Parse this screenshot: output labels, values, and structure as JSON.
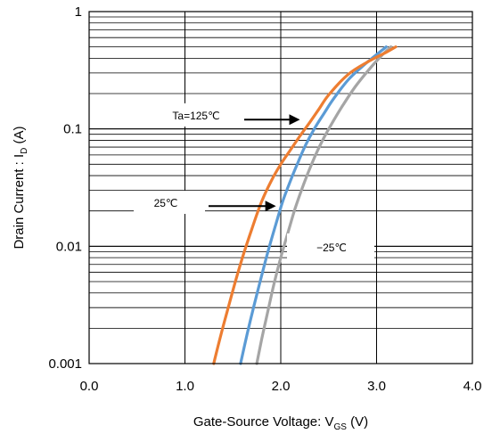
{
  "chart_data": {
    "type": "line",
    "title": "",
    "xlabel": {
      "main": "Gate-Source Voltage: V",
      "sub": "GS",
      "unit": " (V)"
    },
    "ylabel": {
      "main": "Drain Current : I",
      "sub": "D",
      "unit": " (A)"
    },
    "xlim": [
      0,
      4
    ],
    "ylim": [
      0.001,
      1
    ],
    "yscale": "log",
    "grid": true,
    "x_ticks": [
      0,
      1,
      2,
      3,
      4
    ],
    "x_tick_labels": [
      "0.0",
      "1.0",
      "2.0",
      "3.0",
      "4.0"
    ],
    "y_ticks": [
      0.001,
      0.01,
      0.1,
      1
    ],
    "y_tick_labels": [
      "0.001",
      "0.01",
      "0.1",
      "1"
    ],
    "series": [
      {
        "name": "Ta=125℃",
        "color": "#ED7D31",
        "x": [
          1.3,
          1.4,
          1.5,
          1.6,
          1.7,
          1.8,
          1.9,
          2.0,
          2.1,
          2.2,
          2.3,
          2.4,
          2.5,
          2.7,
          2.9,
          3.1,
          3.2
        ],
        "y": [
          0.001,
          0.0021,
          0.0042,
          0.008,
          0.0142,
          0.024,
          0.036,
          0.05,
          0.066,
          0.087,
          0.113,
          0.148,
          0.195,
          0.29,
          0.37,
          0.45,
          0.5
        ]
      },
      {
        "name": "25℃",
        "color": "#5B9BD5",
        "x": [
          1.58,
          1.65,
          1.72,
          1.8,
          1.87,
          1.95,
          2.02,
          2.1,
          2.18,
          2.26,
          2.35,
          2.45,
          2.55,
          2.7,
          2.85,
          3.0,
          3.1
        ],
        "y": [
          0.001,
          0.0018,
          0.0031,
          0.0056,
          0.0092,
          0.0155,
          0.024,
          0.036,
          0.052,
          0.073,
          0.1,
          0.135,
          0.18,
          0.26,
          0.34,
          0.43,
          0.5
        ]
      },
      {
        "name": "-25℃",
        "color": "#A5A5A5",
        "x": [
          1.75,
          1.8,
          1.87,
          1.93,
          2.0,
          2.08,
          2.15,
          2.24,
          2.33,
          2.43,
          2.53,
          2.65,
          2.78,
          2.92,
          3.05,
          3.15
        ],
        "y": [
          0.001,
          0.0016,
          0.0029,
          0.0048,
          0.008,
          0.0135,
          0.021,
          0.034,
          0.052,
          0.078,
          0.11,
          0.16,
          0.23,
          0.32,
          0.42,
          0.5
        ]
      }
    ],
    "annotations": [
      {
        "text": "Ta=125℃",
        "series": 0,
        "arrow_tip": [
          2.2,
          0.12
        ]
      },
      {
        "text": "25℃",
        "series": 1,
        "arrow_tip": [
          1.95,
          0.022
        ]
      },
      {
        "text": "−25℃",
        "series": 2
      }
    ]
  }
}
